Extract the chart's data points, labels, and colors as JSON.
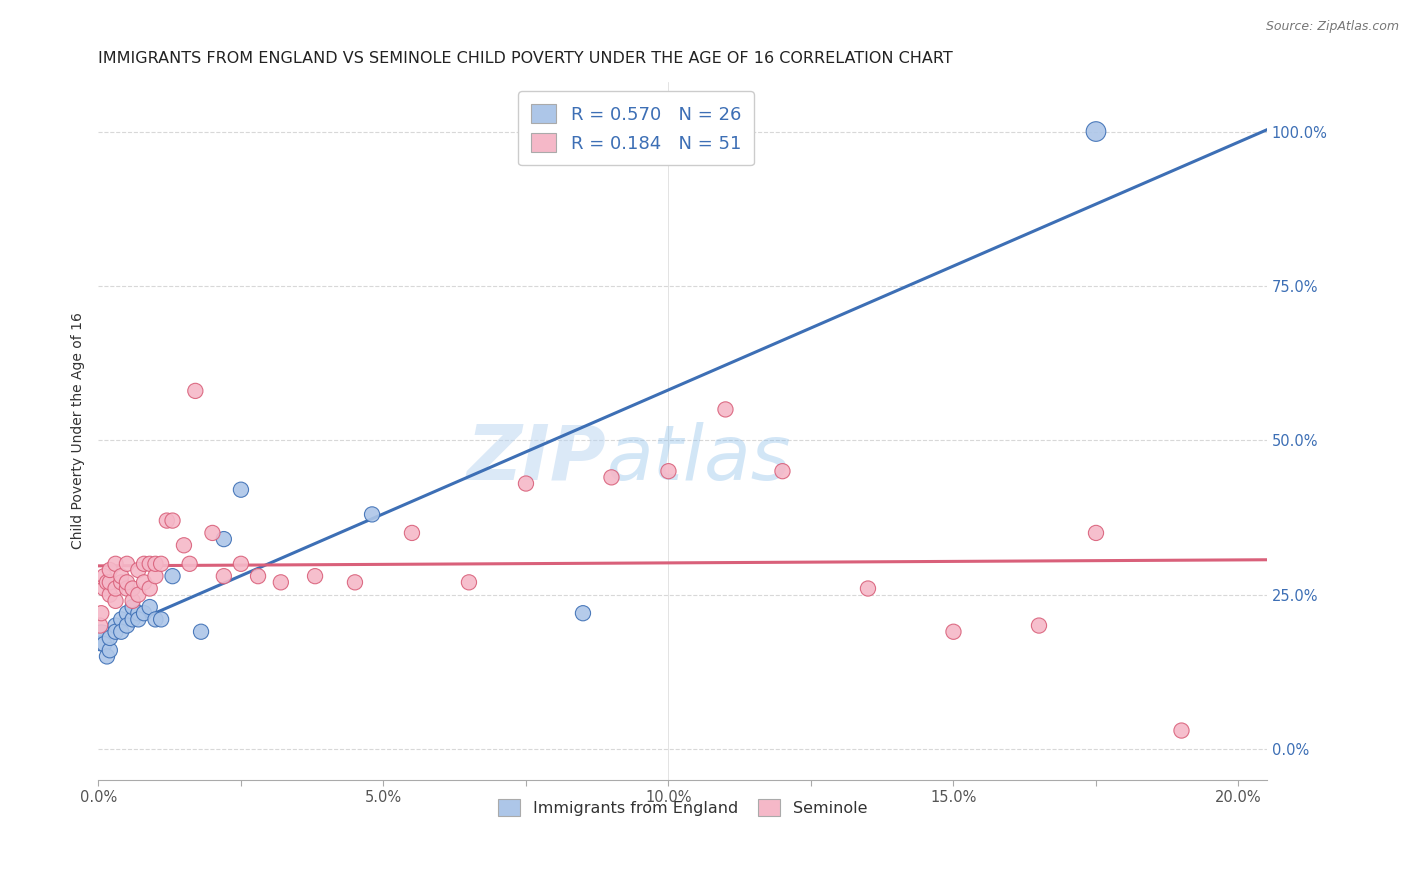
{
  "title": "IMMIGRANTS FROM ENGLAND VS SEMINOLE CHILD POVERTY UNDER THE AGE OF 16 CORRELATION CHART",
  "source": "Source: ZipAtlas.com",
  "ylabel": "Child Poverty Under the Age of 16",
  "legend_label_1": "Immigrants from England",
  "legend_label_2": "Seminole",
  "R1": 0.57,
  "N1": 26,
  "R2": 0.184,
  "N2": 51,
  "color1": "#adc6e8",
  "color2": "#f5b8c8",
  "line_color1": "#3d6fb5",
  "line_color2": "#d9607a",
  "watermark_zip": "ZIP",
  "watermark_atlas": "atlas",
  "xlim": [
    0.0,
    0.205
  ],
  "ylim": [
    -0.05,
    1.08
  ],
  "xticks": [
    0.0,
    0.025,
    0.05,
    0.075,
    0.1,
    0.125,
    0.15,
    0.175,
    0.2
  ],
  "xticklabels": [
    "0.0%",
    "",
    "5.0%",
    "",
    "10.0%",
    "",
    "15.0%",
    "",
    "20.0%"
  ],
  "yticks_right": [
    0.0,
    0.25,
    0.5,
    0.75,
    1.0
  ],
  "yticklabels_right": [
    "0.0%",
    "25.0%",
    "50.0%",
    "75.0%",
    "100.0%"
  ],
  "scatter1_x": [
    0.0005,
    0.001,
    0.0015,
    0.002,
    0.002,
    0.003,
    0.003,
    0.004,
    0.004,
    0.005,
    0.005,
    0.006,
    0.006,
    0.007,
    0.007,
    0.008,
    0.009,
    0.01,
    0.011,
    0.013,
    0.018,
    0.022,
    0.025,
    0.048,
    0.085,
    0.175
  ],
  "scatter1_y": [
    0.18,
    0.17,
    0.15,
    0.16,
    0.18,
    0.2,
    0.19,
    0.21,
    0.19,
    0.22,
    0.2,
    0.21,
    0.23,
    0.22,
    0.21,
    0.22,
    0.23,
    0.21,
    0.21,
    0.28,
    0.19,
    0.34,
    0.42,
    0.38,
    0.22,
    1.0
  ],
  "scatter1_sizes": [
    350,
    120,
    120,
    120,
    120,
    120,
    120,
    120,
    120,
    120,
    120,
    120,
    120,
    120,
    120,
    120,
    120,
    120,
    120,
    120,
    120,
    120,
    120,
    120,
    120,
    200
  ],
  "scatter2_x": [
    0.0003,
    0.0005,
    0.001,
    0.001,
    0.0015,
    0.002,
    0.002,
    0.002,
    0.003,
    0.003,
    0.003,
    0.004,
    0.004,
    0.005,
    0.005,
    0.005,
    0.006,
    0.006,
    0.007,
    0.007,
    0.008,
    0.008,
    0.009,
    0.009,
    0.01,
    0.01,
    0.011,
    0.012,
    0.013,
    0.015,
    0.016,
    0.017,
    0.02,
    0.022,
    0.025,
    0.028,
    0.032,
    0.038,
    0.045,
    0.055,
    0.065,
    0.075,
    0.09,
    0.1,
    0.11,
    0.12,
    0.135,
    0.15,
    0.165,
    0.175,
    0.19
  ],
  "scatter2_y": [
    0.2,
    0.22,
    0.26,
    0.28,
    0.27,
    0.25,
    0.27,
    0.29,
    0.24,
    0.26,
    0.3,
    0.27,
    0.28,
    0.26,
    0.27,
    0.3,
    0.24,
    0.26,
    0.25,
    0.29,
    0.27,
    0.3,
    0.26,
    0.3,
    0.28,
    0.3,
    0.3,
    0.37,
    0.37,
    0.33,
    0.3,
    0.58,
    0.35,
    0.28,
    0.3,
    0.28,
    0.27,
    0.28,
    0.27,
    0.35,
    0.27,
    0.43,
    0.44,
    0.45,
    0.55,
    0.45,
    0.26,
    0.19,
    0.2,
    0.35,
    0.03
  ],
  "scatter2_sizes": [
    120,
    120,
    120,
    120,
    120,
    120,
    120,
    120,
    120,
    120,
    120,
    120,
    120,
    120,
    120,
    120,
    120,
    120,
    120,
    120,
    120,
    120,
    120,
    120,
    120,
    120,
    120,
    120,
    120,
    120,
    120,
    120,
    120,
    120,
    120,
    120,
    120,
    120,
    120,
    120,
    120,
    120,
    120,
    120,
    120,
    120,
    120,
    120,
    120,
    120,
    120
  ],
  "background_color": "#ffffff",
  "grid_color": "#d8d8d8",
  "title_fontsize": 11.5,
  "axis_label_fontsize": 10,
  "tick_fontsize": 10.5
}
